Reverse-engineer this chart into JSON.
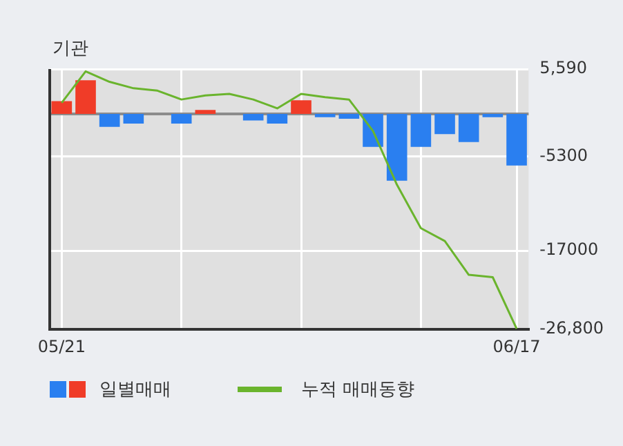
{
  "chart_data": {
    "type": "bar",
    "title": "기관",
    "categories": [
      "05/21",
      null,
      null,
      null,
      null,
      null,
      null,
      null,
      null,
      null,
      null,
      null,
      null,
      null,
      null,
      null,
      null,
      null,
      null,
      "06/17"
    ],
    "series": [
      {
        "name": "일별매매",
        "colors": [
          "#f03c28",
          "#f03c28",
          "#2a7ff0",
          "#2a7ff0",
          "#2a7ff0",
          "#2a7ff0",
          "#f03c28",
          "#2a7ff0",
          "#2a7ff0",
          "#2a7ff0",
          "#f03c28",
          "#2a7ff0",
          "#2a7ff0",
          "#2a7ff0",
          "#2a7ff0",
          "#2a7ff0",
          "#2a7ff0",
          "#2a7ff0",
          "#2a7ff0",
          "#2a7ff0"
        ],
        "values": [
          1600,
          4200,
          -1600,
          -1200,
          0,
          -1200,
          500,
          0,
          -800,
          -1200,
          1700,
          -400,
          -600,
          -4100,
          -8300,
          -4100,
          -2500,
          -3500,
          -400,
          -6400
        ]
      },
      {
        "name": "누적 매매동향",
        "type": "line",
        "color": "#6ab42d",
        "values": [
          1400,
          5300,
          4000,
          3200,
          2900,
          1800,
          2300,
          2500,
          1800,
          700,
          2500,
          2100,
          1800,
          -2100,
          -8800,
          -14200,
          -15800,
          -20000,
          -20300,
          -26700
        ]
      }
    ],
    "ylim": [
      -26800,
      5590
    ],
    "yticks": [
      {
        "value": 5590,
        "label": "5,590"
      },
      {
        "value": -5300,
        "label": "-5300"
      },
      {
        "value": -17000,
        "label": "-17000"
      },
      {
        "value": -26800,
        "label": "-26,800"
      }
    ],
    "grid": true,
    "legend": "bottom",
    "marker": "none"
  }
}
